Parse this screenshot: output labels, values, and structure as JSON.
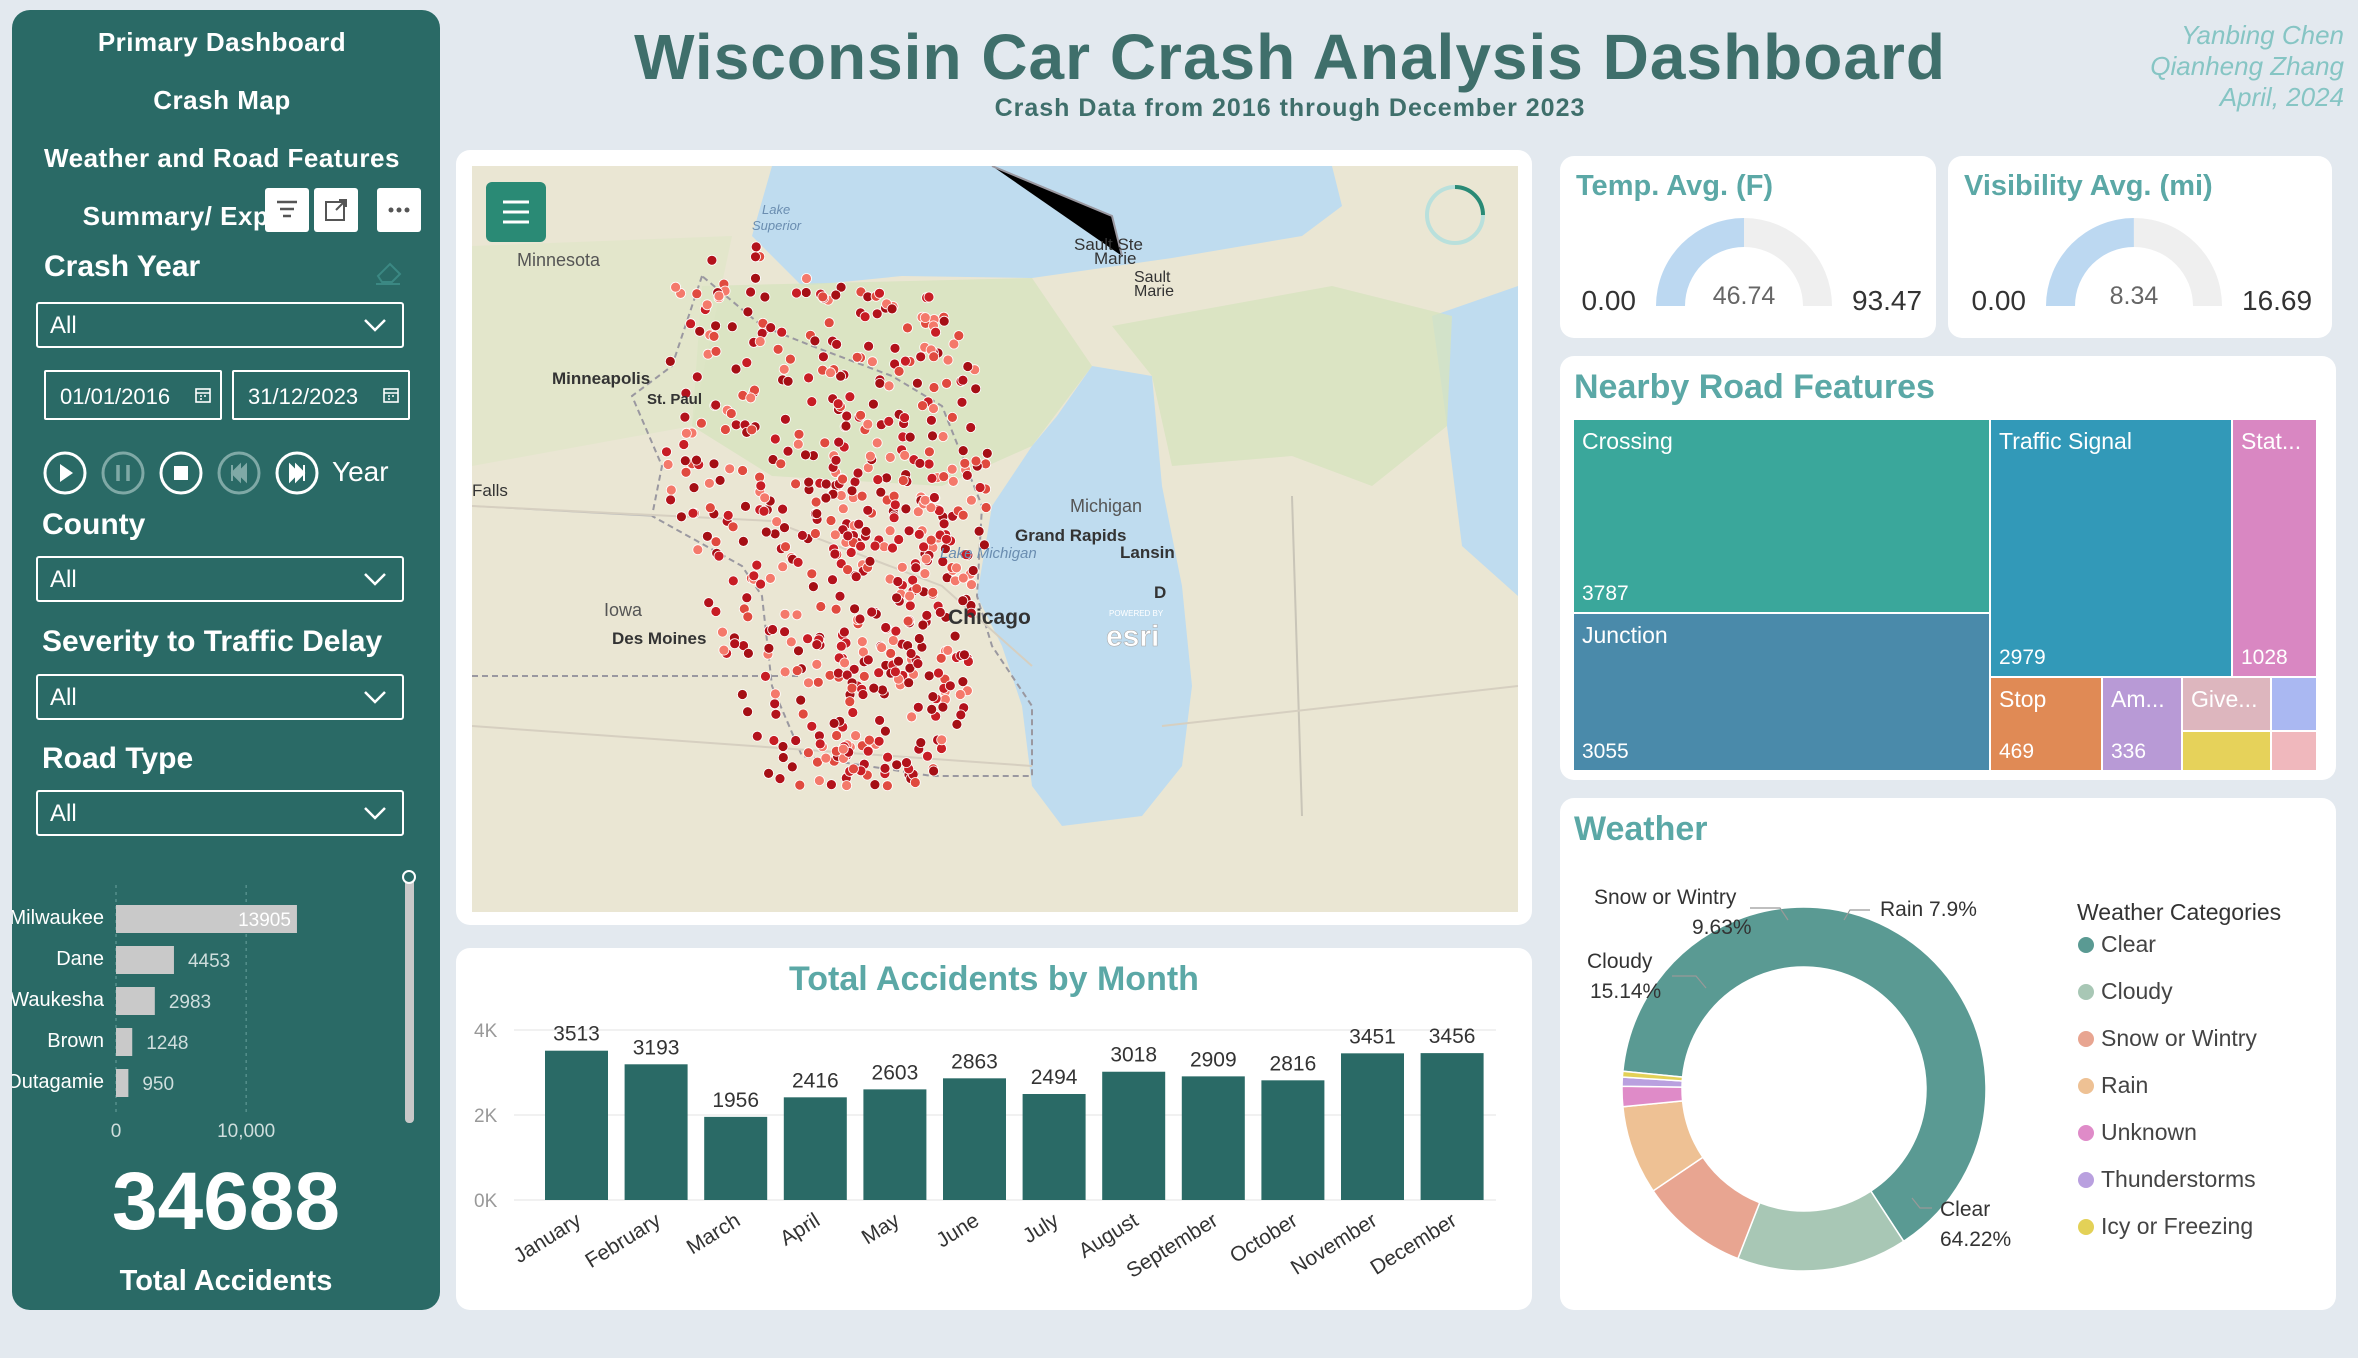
{
  "header": {
    "title": "Wisconsin Car Crash Analysis Dashboard",
    "subtitle": "Crash Data from 2016 through December 2023",
    "authors": [
      "Yanbing Chen",
      "Qianheng Zhang",
      "April, 2024"
    ]
  },
  "nav": {
    "items": [
      "Primary Dashboard",
      "Crash Map",
      "Weather and Road Features",
      "Summary/ Exp"
    ],
    "toolbar_icons": [
      "filter-icon",
      "focus-mode-icon",
      "more-options-icon"
    ]
  },
  "filters": {
    "crash_year_label": "Crash Year",
    "crash_year_value": "All",
    "start_date": "01/01/2016",
    "end_date": "31/12/2023",
    "play_label": "Year",
    "county_label": "County",
    "county_value": "All",
    "severity_label": "Severity to Traffic Delay",
    "severity_value": "All",
    "road_type_label": "Road Type",
    "road_type_value": "All"
  },
  "county_chart": {
    "categories": [
      "Milwaukee",
      "Dane",
      "Waukesha",
      "Brown",
      "Outagamie"
    ],
    "values": [
      13905,
      4453,
      2983,
      1248,
      950
    ],
    "value_labels": [
      "13905",
      "4453",
      "2983",
      "1248",
      "950"
    ],
    "xticks": [
      "0",
      "10,000"
    ],
    "xlim": [
      0,
      14600
    ]
  },
  "total": {
    "value": "34688",
    "label": "Total Accidents"
  },
  "map": {
    "labels": {
      "lake_superior_1": "Lake",
      "lake_superior_2": "Superior",
      "minnesota": "Minnesota",
      "minneapolis": "Minneapolis",
      "st_paul": "St. Paul",
      "sault_ste_marie_1": "Sault Ste",
      "sault_ste_marie_2": "Marie",
      "sault_1": "Sault",
      "sault_2": "Marie",
      "falls": "Falls",
      "michigan": "Michigan",
      "grand_rapids": "Grand Rapids",
      "lansing": "Lansin",
      "lake_michigan": "Lake Michigan",
      "iowa": "Iowa",
      "des_moines": "Des Moines",
      "chicago": "Chicago",
      "d": "D",
      "esri": "esri",
      "powered_by": "POWERED BY"
    }
  },
  "month_chart": {
    "title": "Total Accidents by Month",
    "categories": [
      "January",
      "February",
      "March",
      "April",
      "May",
      "June",
      "July",
      "August",
      "September",
      "October",
      "November",
      "December"
    ],
    "values": [
      3513,
      3193,
      1956,
      2416,
      2603,
      2863,
      2494,
      3018,
      2909,
      2816,
      3451,
      3456
    ],
    "value_labels": [
      "3513",
      "3193",
      "1956",
      "2416",
      "2603",
      "2863",
      "2494",
      "3018",
      "2909",
      "2816",
      "3451",
      "3456"
    ],
    "yticks": [
      "0K",
      "2K",
      "4K"
    ],
    "ylim": [
      0,
      4000
    ],
    "bar_color": "#2a6a66"
  },
  "temp_gauge": {
    "title": "Temp. Avg. (F)",
    "min_label": "0.00",
    "max_label": "93.47",
    "value_label": "46.74",
    "min": 0,
    "max": 93.47,
    "value": 46.74
  },
  "vis_gauge": {
    "title": "Visibility Avg. (mi)",
    "min_label": "0.00",
    "max_label": "16.69",
    "value_label": "8.34",
    "min": 0,
    "max": 16.69,
    "value": 8.34
  },
  "road_features": {
    "title": "Nearby Road Features",
    "items": [
      {
        "name": "Crossing",
        "value": "3787",
        "color": "#3aa79b"
      },
      {
        "name": "Junction",
        "value": "3055",
        "color": "#4a8aaa"
      },
      {
        "name": "Traffic Signal",
        "value": "2979",
        "color": "#3299b8"
      },
      {
        "name": "Stat...",
        "value": "1028",
        "color": "#d987c2"
      },
      {
        "name": "Stop",
        "value": "469",
        "color": "#e08a55"
      },
      {
        "name": "Am...",
        "value": "336",
        "color": "#b89ad6"
      },
      {
        "name": "Give...",
        "value": "",
        "color": "#ddb6be"
      }
    ]
  },
  "weather": {
    "title": "Weather",
    "legend_title": "Weather Categories",
    "categories": [
      "Clear",
      "Cloudy",
      "Snow or Wintry",
      "Rain",
      "Unknown",
      "Thunderstorms",
      "Icy or Freezing"
    ],
    "values": [
      64.22,
      15.14,
      9.63,
      7.9,
      1.8,
      0.8,
      0.51
    ],
    "colors": [
      "#5a9a93",
      "#a8c7b5",
      "#e8a591",
      "#eec194",
      "#df8bc8",
      "#b9a0df",
      "#e3d157"
    ],
    "callouts": {
      "snow_name": "Snow or Wintry",
      "snow_pct": "9.63%",
      "rain": "Rain 7.9%",
      "cloudy_name": "Cloudy",
      "cloudy_pct": "15.14%",
      "clear_name": "Clear",
      "clear_pct": "64.22%"
    }
  }
}
